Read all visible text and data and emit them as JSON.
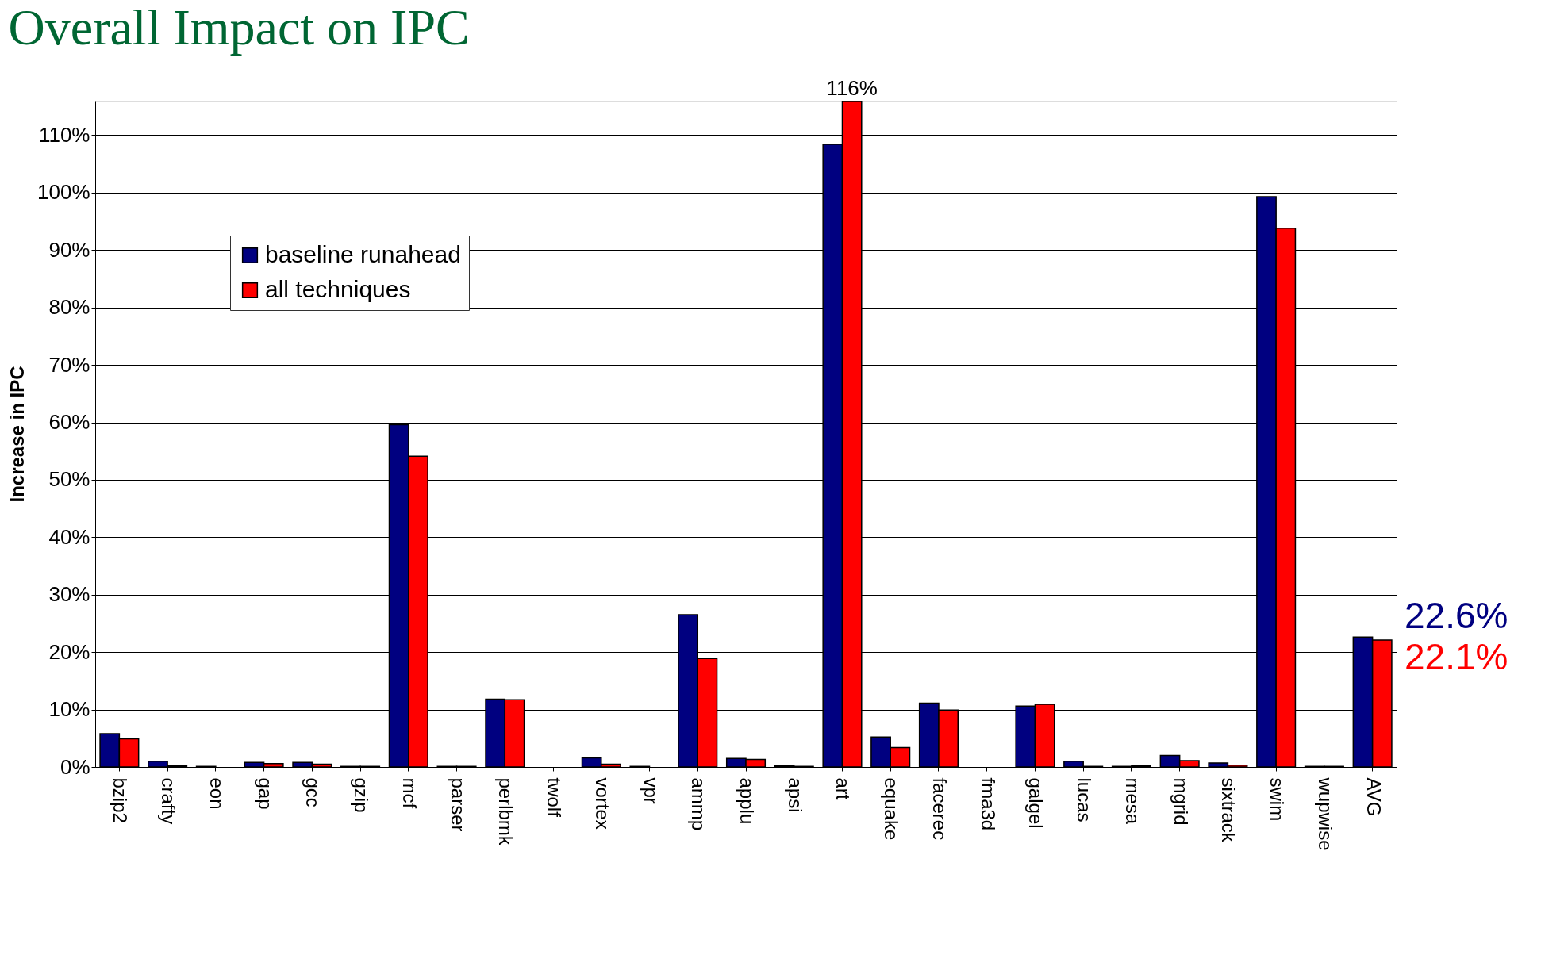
{
  "chart_data": {
    "type": "bar",
    "title": "Overall Impact on IPC",
    "ylabel": "Increase in IPC",
    "categories": [
      "bzip2",
      "crafty",
      "eon",
      "gap",
      "gcc",
      "gzip",
      "mcf",
      "parser",
      "perlbmk",
      "twolf",
      "vortex",
      "vpr",
      "ammp",
      "applu",
      "apsi",
      "art",
      "equake",
      "facerec",
      "fma3d",
      "galgel",
      "lucas",
      "mesa",
      "mgrid",
      "sixtrack",
      "swim",
      "wupwise",
      "AVG"
    ],
    "series": [
      {
        "name": "baseline runahead",
        "color": "#000080",
        "values": [
          5.8,
          1.0,
          0.1,
          0.8,
          0.8,
          0.1,
          59.6,
          0.1,
          11.8,
          0.0,
          1.6,
          0.1,
          26.5,
          1.5,
          0.2,
          108.4,
          5.2,
          11.1,
          0,
          10.6,
          1.0,
          0.1,
          2.0,
          0.7,
          99.3,
          0.1,
          22.6
        ]
      },
      {
        "name": "all techniques",
        "color": "#ff0000",
        "values": [
          4.9,
          0.2,
          0.0,
          0.6,
          0.5,
          0.1,
          54.1,
          0.1,
          11.7,
          0.0,
          0.5,
          0.0,
          18.9,
          1.3,
          0.1,
          116,
          3.4,
          9.9,
          0,
          10.9,
          0.1,
          0.2,
          1.1,
          0.3,
          93.8,
          0.1,
          22.1
        ],
        "value_labels": [
          null,
          null,
          null,
          null,
          null,
          null,
          null,
          null,
          null,
          null,
          null,
          null,
          null,
          null,
          null,
          "116%",
          null,
          null,
          null,
          null,
          null,
          null,
          null,
          null,
          null,
          null,
          null
        ]
      }
    ],
    "ylim": [
      0,
      116
    ],
    "yticks": [
      {
        "value": 0,
        "label": "0%"
      },
      {
        "value": 10,
        "label": "10%"
      },
      {
        "value": 20,
        "label": "20%"
      },
      {
        "value": 30,
        "label": "30%"
      },
      {
        "value": 40,
        "label": "40%"
      },
      {
        "value": 50,
        "label": "50%"
      },
      {
        "value": 60,
        "label": "60%"
      },
      {
        "value": 70,
        "label": "70%"
      },
      {
        "value": 80,
        "label": "80%"
      },
      {
        "value": 90,
        "label": "90%"
      },
      {
        "value": 100,
        "label": "100%"
      },
      {
        "value": 110,
        "label": "110%"
      }
    ],
    "grid": "y",
    "legend": "top left",
    "annotations": [
      "22.6%",
      "22.1%"
    ]
  }
}
